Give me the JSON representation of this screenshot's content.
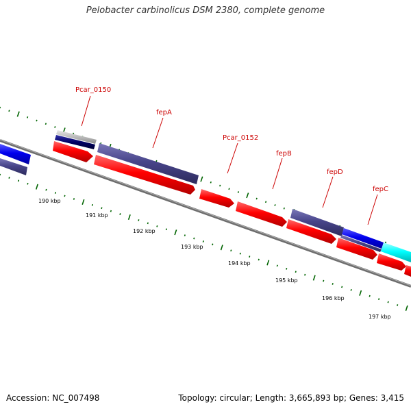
{
  "header": {
    "title": "Pelobacter carbinolicus DSM 2380, complete genome"
  },
  "footer": {
    "accession": "Accession: NC_007498",
    "summary": "Topology: circular; Length: 3,665,893 bp; Genes: 3,415"
  },
  "colors": {
    "label": "#cc0000",
    "forward_cds": "#ff0000",
    "reverse_cds": "#48458a",
    "highlight_blue": "#0000ee",
    "cyan": "#00ffff",
    "navy": "#000066",
    "grey": "#bbbbbb",
    "backbone": "#808080",
    "tick": "#006400"
  },
  "gene_labels": [
    "Pcar_0150",
    "fepA",
    "Pcar_0152",
    "fepB",
    "fepD",
    "fepC"
  ],
  "scale_labels": [
    "190 kbp",
    "191 kbp",
    "192 kbp",
    "193 kbp",
    "194 kbp",
    "195 kbp",
    "196 kbp",
    "197 kbp"
  ]
}
